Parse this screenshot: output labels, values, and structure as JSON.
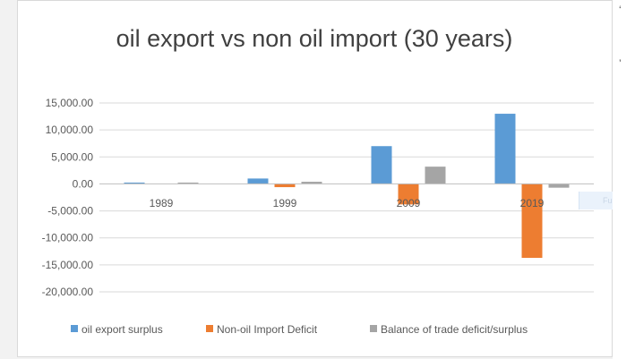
{
  "chart_data": {
    "type": "bar",
    "title": "oil export vs non oil import (30 years)",
    "xlabel": "",
    "ylabel": "",
    "categories": [
      "1989",
      "1999",
      "2009",
      "2019"
    ],
    "series": [
      {
        "name": "oil export surplus",
        "color": "#5b9bd5",
        "values": [
          250,
          1000,
          7000,
          13000
        ]
      },
      {
        "name": "Non-oil Import Deficit",
        "color": "#ed7d31",
        "values": [
          0,
          -600,
          -3800,
          -13700
        ]
      },
      {
        "name": "Balance of trade deficit/surplus",
        "color": "#a5a5a5",
        "values": [
          250,
          400,
          3200,
          -700
        ]
      }
    ],
    "ylim": [
      -20000,
      15000
    ],
    "yticks": [
      15000,
      10000,
      5000,
      0,
      -5000,
      -10000,
      -15000,
      -20000
    ],
    "ytick_labels": [
      "15,000.00",
      "10,000.00",
      "5,000.00",
      "0.00",
      "-5,000.00",
      "-10,000.00",
      "-15,000.00",
      "-20,000.00"
    ],
    "grid": true,
    "legend_position": "bottom"
  },
  "overlay": {
    "cell_text": "Full-scr",
    "edge_glyphs": [
      "‘",
      "’"
    ]
  }
}
